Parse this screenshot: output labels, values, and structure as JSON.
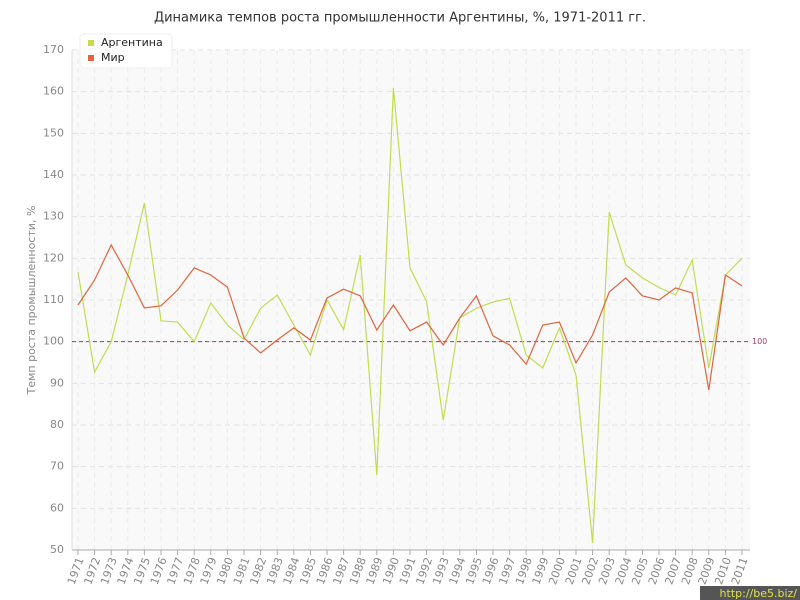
{
  "chart_data": {
    "type": "line",
    "title": "Динамика темпов роста промышленности Аргентины, %, 1971-2011 гг.",
    "y_label": "Темп роста промышленности, %",
    "categories": [
      "1971",
      "1972",
      "1973",
      "1974",
      "1975",
      "1976",
      "1977",
      "1978",
      "1979",
      "1980",
      "1981",
      "1982",
      "1983",
      "1984",
      "1985",
      "1986",
      "1987",
      "1988",
      "1989",
      "1990",
      "1991",
      "1992",
      "1993",
      "1994",
      "1995",
      "1996",
      "1997",
      "1998",
      "1999",
      "2000",
      "2001",
      "2002",
      "2003",
      "2004",
      "2005",
      "2006",
      "2007",
      "2008",
      "2009",
      "2010",
      "2011"
    ],
    "series": [
      {
        "name": "Аргентина",
        "color": "#c2dc52",
        "values": [
          116.7,
          92.7,
          100,
          116,
          133.3,
          105,
          104.7,
          100,
          109.3,
          104,
          100.5,
          108,
          111.2,
          104,
          96.8,
          110,
          102.9,
          120.8,
          68,
          160.9,
          117.7,
          109.6,
          81.2,
          105.7,
          108,
          109.5,
          110.4,
          96.8,
          93.7,
          103.3,
          92,
          51.7,
          131.1,
          118.4,
          115.3,
          113,
          111.2,
          119.6,
          93.7,
          116,
          120
        ]
      },
      {
        "name": "Мир",
        "color": "#e0643e",
        "values": [
          108.8,
          114.8,
          123.2,
          116,
          108.1,
          108.6,
          112.4,
          117.7,
          116,
          113.1,
          100.9,
          97.3,
          100.4,
          103.3,
          100.4,
          110.5,
          112.6,
          111,
          102.8,
          108.8,
          102.6,
          104.7,
          99.2,
          105.7,
          111,
          101.4,
          99.2,
          94.6,
          104,
          104.7,
          94.9,
          101.6,
          111.9,
          115.3,
          111,
          110,
          112.9,
          111.7,
          88.4,
          116,
          113.4
        ]
      }
    ],
    "ylim": [
      50,
      170
    ],
    "yticks": [
      50,
      60,
      70,
      80,
      90,
      100,
      110,
      120,
      130,
      140,
      150,
      160,
      170
    ],
    "grid": true,
    "legend": "top-left",
    "reference_line": 100,
    "reference_color": "#a0405a",
    "watermark": "http://be5.biz/"
  }
}
